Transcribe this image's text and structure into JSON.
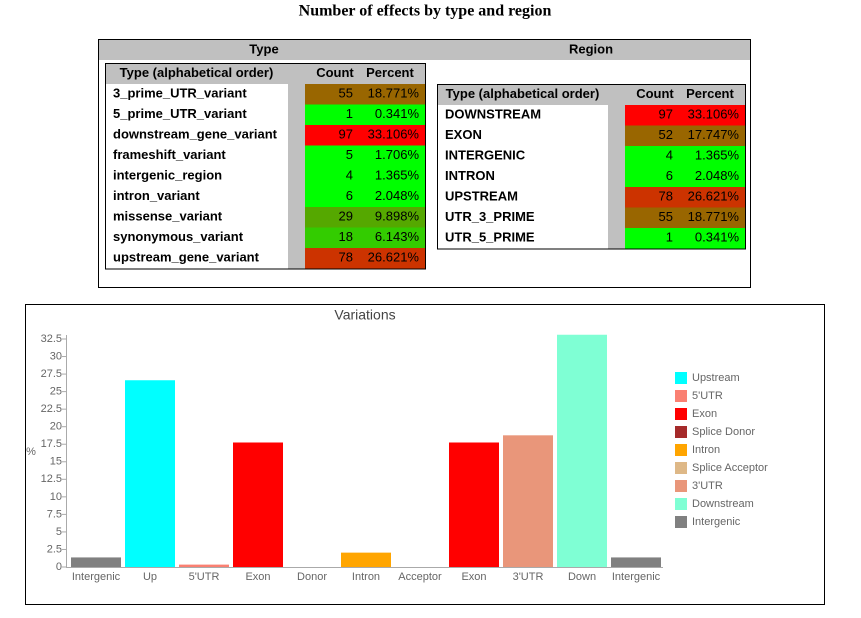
{
  "title": "Number of effects by type and region",
  "type_table": {
    "title": "Type",
    "columns": [
      "Type (alphabetical order)",
      "Count",
      "Percent"
    ],
    "rows": [
      {
        "name": "3_prime_UTR_variant",
        "count": 55,
        "percent": "18.771%",
        "color": "#996600"
      },
      {
        "name": "5_prime_UTR_variant",
        "count": 1,
        "percent": "0.341%",
        "color": "#00ff00"
      },
      {
        "name": "downstream_gene_variant",
        "count": 97,
        "percent": "33.106%",
        "color": "#ff0000"
      },
      {
        "name": "frameshift_variant",
        "count": 5,
        "percent": "1.706%",
        "color": "#00ff00"
      },
      {
        "name": "intergenic_region",
        "count": 4,
        "percent": "1.365%",
        "color": "#00ff00"
      },
      {
        "name": "intron_variant",
        "count": 6,
        "percent": "2.048%",
        "color": "#00ff00"
      },
      {
        "name": "missense_variant",
        "count": 29,
        "percent": "9.898%",
        "color": "#55a800"
      },
      {
        "name": "synonymous_variant",
        "count": 18,
        "percent": "6.143%",
        "color": "#33cc00"
      },
      {
        "name": "upstream_gene_variant",
        "count": 78,
        "percent": "26.621%",
        "color": "#cc3300"
      }
    ]
  },
  "region_table": {
    "title": "Region",
    "columns": [
      "Type (alphabetical order)",
      "Count",
      "Percent"
    ],
    "rows": [
      {
        "name": "DOWNSTREAM",
        "count": 97,
        "percent": "33.106%",
        "color": "#ff0000"
      },
      {
        "name": "EXON",
        "count": 52,
        "percent": "17.747%",
        "color": "#996600"
      },
      {
        "name": "INTERGENIC",
        "count": 4,
        "percent": "1.365%",
        "color": "#00ff00"
      },
      {
        "name": "INTRON",
        "count": 6,
        "percent": "2.048%",
        "color": "#00ff00"
      },
      {
        "name": "UPSTREAM",
        "count": 78,
        "percent": "26.621%",
        "color": "#cc3300"
      },
      {
        "name": "UTR_3_PRIME",
        "count": 55,
        "percent": "18.771%",
        "color": "#996600"
      },
      {
        "name": "UTR_5_PRIME",
        "count": 1,
        "percent": "0.341%",
        "color": "#00ff00"
      }
    ]
  },
  "chart_data": {
    "type": "bar",
    "title": "Variations",
    "y_label": "%",
    "categories": [
      "Intergenic",
      "Up",
      "5'UTR",
      "Exon",
      "Donor",
      "Intron",
      "Acceptor",
      "Exon",
      "3'UTR",
      "Down",
      "Intergenic"
    ],
    "values": [
      1.365,
      26.621,
      0.341,
      17.747,
      0,
      2.048,
      0,
      17.747,
      18.771,
      33.106,
      1.365
    ],
    "colors": [
      "#808080",
      "#00ffff",
      "#fa8072",
      "#ff0000",
      "#a52a2a",
      "#ffa500",
      "#deb887",
      "#ff0000",
      "#e9967a",
      "#7fffd4",
      "#808080"
    ],
    "ylim": [
      0,
      32.5
    ],
    "yticks": [
      0,
      2.5,
      5,
      7.5,
      10,
      12.5,
      15,
      17.5,
      20,
      22.5,
      25,
      27.5,
      30,
      32.5
    ],
    "legend": [
      {
        "name": "Upstream",
        "color": "#00ffff"
      },
      {
        "name": "5'UTR",
        "color": "#fa8072"
      },
      {
        "name": "Exon",
        "color": "#ff0000"
      },
      {
        "name": "Splice Donor",
        "color": "#a52a2a"
      },
      {
        "name": "Intron",
        "color": "#ffa500"
      },
      {
        "name": "Splice Acceptor",
        "color": "#deb887"
      },
      {
        "name": "3'UTR",
        "color": "#e9967a"
      },
      {
        "name": "Downstream",
        "color": "#7fffd4"
      },
      {
        "name": "Intergenic",
        "color": "#808080"
      }
    ]
  }
}
